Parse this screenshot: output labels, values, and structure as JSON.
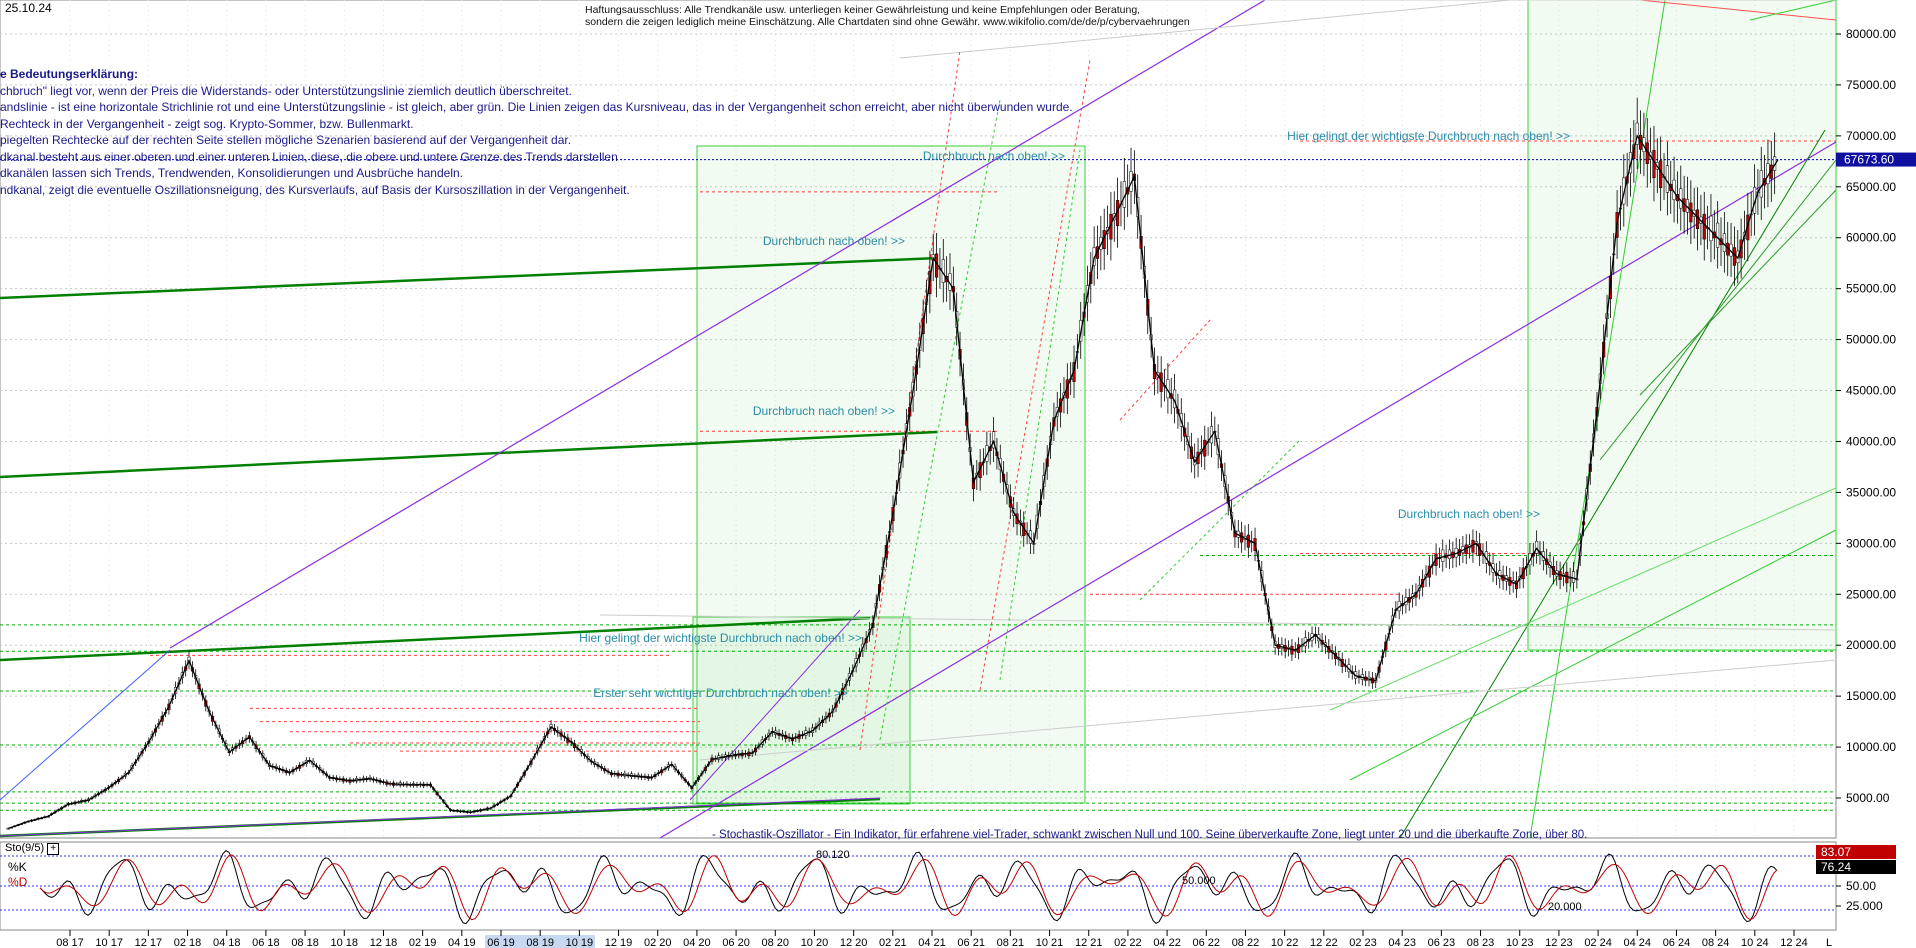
{
  "header": {
    "date": "25.10.24",
    "disclaimer_line1": "Haftungsausschluss: Alle Trendkanäle usw. unterliegen keiner Gewährleistung und keine Empfehlungen oder Beratung,",
    "disclaimer_line2": "sondern die zeigen lediglich meine Einschätzung. Alle Chartdaten sind ohne Gewähr. www.wikifolio.com/de/de/p/cybervaehrungen"
  },
  "legend": {
    "heading": "e Bedeutungserklärung:",
    "lines": [
      "chbruch\" liegt vor, wenn der Preis die Widerstands- oder Unterstützungslinie ziemlich deutlich überschreitet.",
      "andslinie - ist eine horizontale Strichlinie rot und eine Unterstützungslinie - ist gleich, aber grün. Die Linien zeigen das Kursniveau, das in der Vergangenheit schon erreicht, aber nicht überwunden wurde.",
      "Rechteck in der Vergangenheit - zeigt sog. Krypto-Sommer, bzw. Bullenmarkt.",
      "piegelten Rechtecke auf der rechten Seite stellen mögliche Szenarien basierend auf der Vergangenheit dar.",
      "dkanal besteht aus einer oberen und einer unteren Linien, diese, die obere und untere Grenze des Trends darstellen",
      "dkanälen lassen sich Trends, Trendwenden, Konsolidierungen und Ausbrüche handeln.",
      "ndkanal, zeigt die eventuelle Oszillationsneigung, des Kursverlaufs, auf Basis der Kursoszillation in der Vergangenheit."
    ]
  },
  "annotations": [
    "Durchbruch nach oben! >>",
    "Durchbruch nach oben! >>",
    "Durchbruch nach oben! >>",
    "Hier gelingt der wichtigste Durchbruch nach oben! >>",
    "Erster sehr wichtiger Durchbruch nach oben! >>",
    "Hier gelingt der wichtigste Durchbruch nach oben! >>",
    "Durchbruch nach oben! >>"
  ],
  "stochastic": {
    "label": "Sto(9/5)",
    "k_label": "%K",
    "d_label": "%D",
    "description": "- Stochastik-Oszillator - Ein Indikator, für erfahrene viel-Trader, schwankt zwischen Null und 100. Seine überverkaufte Zone, liegt unter 20 und die überkaufte Zone, über 80.",
    "mark_80": "80.120",
    "mark_50": "50.000",
    "mark_20": "20.000",
    "k_value": "83.07",
    "d_value": "76.24",
    "ticks": [
      "50.00",
      "25.000"
    ]
  },
  "colors": {
    "candle_up": "#ffffff",
    "candle_down": "#c00000",
    "support": "#00b000",
    "resistance": "#ff4040",
    "channel_dark": "#008000",
    "channel_purple": "#8a2be2",
    "price_line": "#0000c0",
    "k_badge": "#c00000",
    "d_badge": "#000000",
    "current_badge": "#1010a0"
  },
  "chart_data": {
    "type": "line",
    "title": "",
    "price_axis_ticks": [
      80000,
      75000,
      70000,
      65000,
      60000,
      55000,
      50000,
      45000,
      40000,
      35000,
      30000,
      25000,
      20000,
      15000,
      10000,
      5000
    ],
    "price_axis_labels": [
      "80000.00",
      "75000.00",
      "70000.00",
      "65000.00",
      "60000.00",
      "55000.00",
      "50000.00",
      "45000.00",
      "40000.00",
      "35000.00",
      "30000.00",
      "25000.00",
      "20000.00",
      "15000.00",
      "10000.00",
      "5000.00"
    ],
    "current_price": "67673.60",
    "current_price_value": 67673.6,
    "x_ticks": [
      "08 17",
      "10 17",
      "12 17",
      "02 18",
      "04 18",
      "06 18",
      "08 18",
      "10 18",
      "12 18",
      "02 19",
      "04 19",
      "06 19",
      "08 19",
      "10 19",
      "12 19",
      "02 20",
      "04 20",
      "06 20",
      "08 20",
      "10 20",
      "12 20",
      "02 21",
      "04 21",
      "06 21",
      "08 21",
      "10 21",
      "12 21",
      "02 22",
      "04 22",
      "06 22",
      "08 22",
      "10 22",
      "12 22",
      "02 23",
      "04 23",
      "06 23",
      "08 23",
      "10 23",
      "12 23",
      "02 24",
      "04 24",
      "06 24",
      "08 24",
      "10 24",
      "12 24"
    ],
    "x_ticks_end": "L",
    "series": [
      {
        "name": "",
        "x": [
          0,
          1,
          2,
          3,
          4,
          5,
          6,
          7,
          8,
          9,
          10,
          11,
          12,
          13,
          14,
          15,
          16,
          17,
          18,
          19,
          20,
          21,
          22,
          23,
          24,
          25,
          26,
          27,
          28,
          29,
          30,
          31,
          32,
          33,
          34,
          35,
          36,
          37,
          38,
          39,
          40,
          41,
          42,
          43,
          44,
          45,
          46,
          47,
          48,
          49,
          50,
          51,
          52,
          53,
          54,
          55,
          56,
          57,
          58,
          59,
          60,
          61,
          62,
          63,
          64,
          65,
          66,
          67,
          68,
          69,
          70,
          71,
          72,
          73,
          74,
          75,
          76,
          77,
          78,
          79,
          80,
          81,
          82,
          83,
          84,
          85,
          86,
          87,
          88
        ],
        "values": [
          2000,
          2700,
          3200,
          4400,
          4800,
          6000,
          7500,
          10500,
          14000,
          18500,
          13500,
          9500,
          11000,
          8200,
          7500,
          8700,
          7000,
          6700,
          6900,
          6400,
          6300,
          6300,
          3800,
          3600,
          4000,
          5200,
          8500,
          12000,
          10500,
          8600,
          7400,
          7200,
          7000,
          8300,
          6000,
          8800,
          9200,
          9400,
          11500,
          10800,
          11600,
          13500,
          17500,
          22000,
          33000,
          45000,
          58000,
          55000,
          36000,
          40000,
          33000,
          30000,
          42000,
          47000,
          58000,
          62000,
          66000,
          47000,
          44000,
          38000,
          41000,
          31000,
          30000,
          20000,
          19500,
          21000,
          19000,
          17000,
          16500,
          23500,
          25000,
          28500,
          29000,
          30000,
          27000,
          26000,
          29500,
          27000,
          26500,
          43000,
          61500,
          70000,
          67000,
          64000,
          62000,
          60000,
          58000,
          64500,
          67673.6
        ]
      }
    ],
    "ylim": [
      0,
      83000
    ],
    "grid": true
  }
}
